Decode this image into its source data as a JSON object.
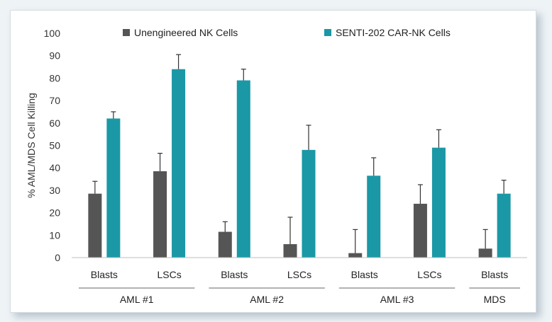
{
  "chart_data": {
    "type": "bar",
    "ylabel": "% AML/MDS Cell Killing",
    "ylim": [
      0,
      100
    ],
    "yticks": [
      0,
      10,
      20,
      30,
      40,
      50,
      60,
      70,
      80,
      90,
      100
    ],
    "grid": false,
    "legend_position": "top",
    "categories": [
      "Blasts",
      "LSCs",
      "Blasts",
      "LSCs",
      "Blasts",
      "LSCs",
      "Blasts"
    ],
    "groups": [
      {
        "label": "AML #1",
        "span": [
          0,
          1
        ]
      },
      {
        "label": "AML #2",
        "span": [
          2,
          3
        ]
      },
      {
        "label": "AML #3",
        "span": [
          4,
          5
        ]
      },
      {
        "label": "MDS",
        "span": [
          6,
          6
        ]
      }
    ],
    "series": [
      {
        "name": "Unengineered NK Cells",
        "color": "#555555",
        "values": [
          28.5,
          38.5,
          11.5,
          6,
          2,
          24,
          4
        ],
        "errors": [
          5.5,
          8,
          4.5,
          12,
          10.5,
          8.5,
          8.5
        ]
      },
      {
        "name": "SENTI-202 CAR-NK Cells",
        "color": "#1a98a6",
        "values": [
          62,
          84,
          79,
          48,
          36.5,
          49,
          28.5
        ],
        "errors": [
          3,
          6.5,
          5,
          11,
          8,
          8,
          6
        ]
      }
    ]
  }
}
